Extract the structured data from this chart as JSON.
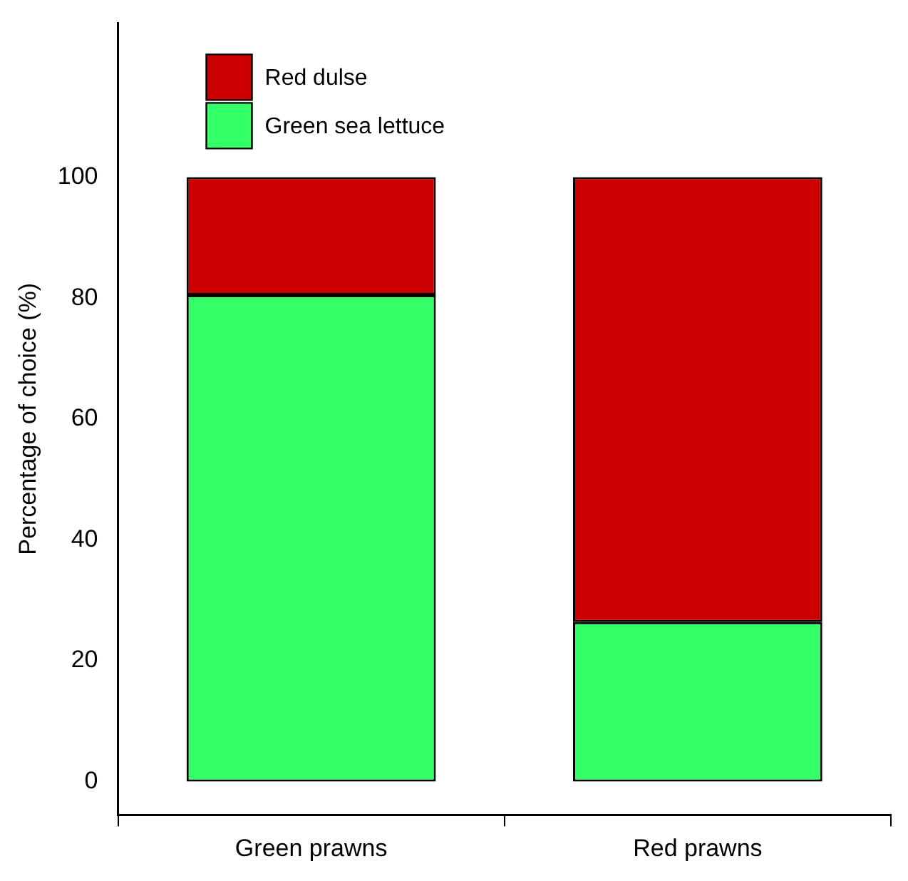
{
  "chart_data": {
    "type": "bar",
    "stacked": true,
    "ylabel": "Percentage of choice (%)",
    "categories": [
      "Green prawns",
      "Red prawns"
    ],
    "series": [
      {
        "name": "Green sea lettuce",
        "color": "#33ff66",
        "values": [
          80.5,
          26.4
        ]
      },
      {
        "name": "Red dulse",
        "color": "#cc0000",
        "values": [
          19.5,
          73.6
        ]
      }
    ],
    "ylim": [
      -5.5,
      125.5
    ],
    "yticks": [
      0,
      20,
      40,
      60,
      80,
      100
    ],
    "grid": false,
    "legend": "top left"
  }
}
